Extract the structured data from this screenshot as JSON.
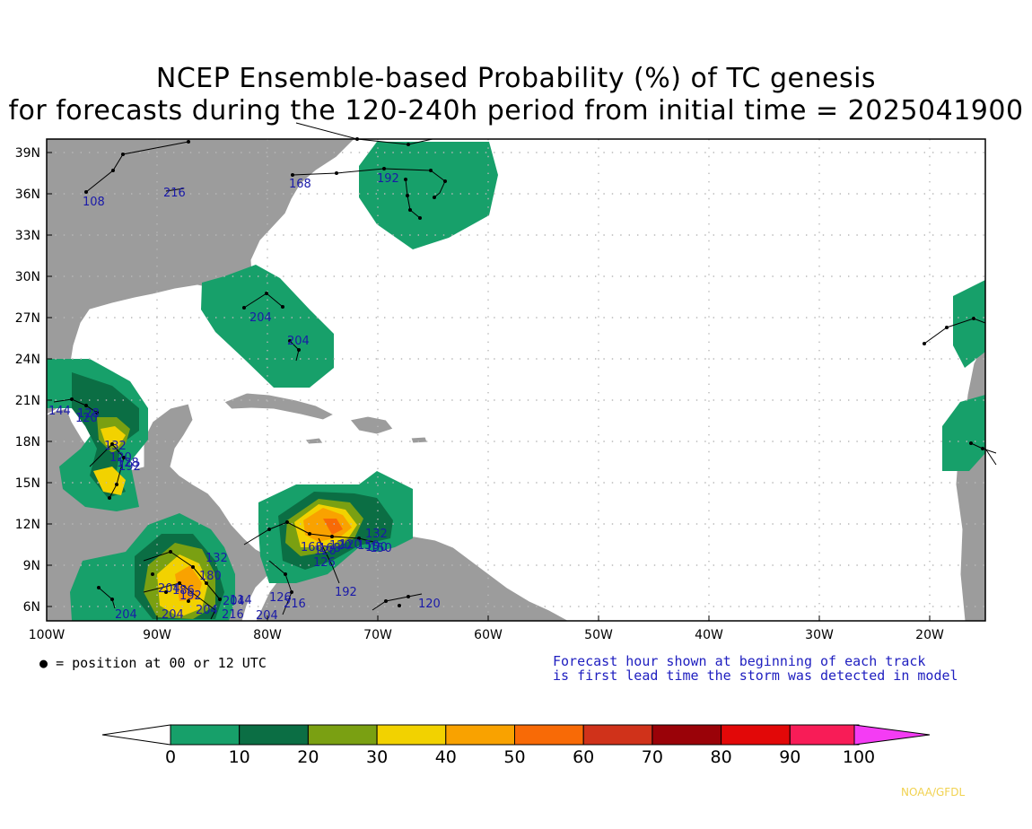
{
  "title_line1": "NCEP Ensemble-based Probability (%) of TC genesis",
  "title_line2": "for forecasts during the 120-240h period from initial time = 2025041900",
  "lat_labels": [
    "39N",
    "36N",
    "33N",
    "30N",
    "27N",
    "24N",
    "21N",
    "18N",
    "15N",
    "12N",
    "9N",
    "6N"
  ],
  "lon_labels": [
    "100W",
    "90W",
    "80W",
    "70W",
    "60W",
    "50W",
    "40W",
    "30W",
    "20W"
  ],
  "position_note": "= position at 00 or 12 UTC",
  "forecast_note_line1": "Forecast hour shown at beginning of each track",
  "forecast_note_line2": "is first lead time the storm was detected in model",
  "colorbar": {
    "ticks": [
      "0",
      "10",
      "20",
      "30",
      "40",
      "50",
      "60",
      "70",
      "80",
      "90",
      "100"
    ],
    "colors": [
      "#ffffff",
      "#17a06a",
      "#0b6e44",
      "#7aa012",
      "#f2d200",
      "#f9a200",
      "#f86a06",
      "#d0321a",
      "#9a0208",
      "#e20808",
      "#f81c57",
      "#f43cf4"
    ]
  },
  "track_labels": [
    "108",
    "216",
    "168",
    "192",
    "204",
    "204",
    "144",
    "128",
    "120",
    "132",
    "120",
    "128",
    "192",
    "204",
    "204",
    "204",
    "204",
    "216",
    "192",
    "204",
    "126",
    "216",
    "132",
    "120",
    "150",
    "168",
    "168",
    "126",
    "120",
    "120",
    "120",
    "150",
    "186",
    "132",
    "180",
    "192",
    "204",
    "114",
    "150"
  ],
  "credit": "NOAA/GFDL"
}
